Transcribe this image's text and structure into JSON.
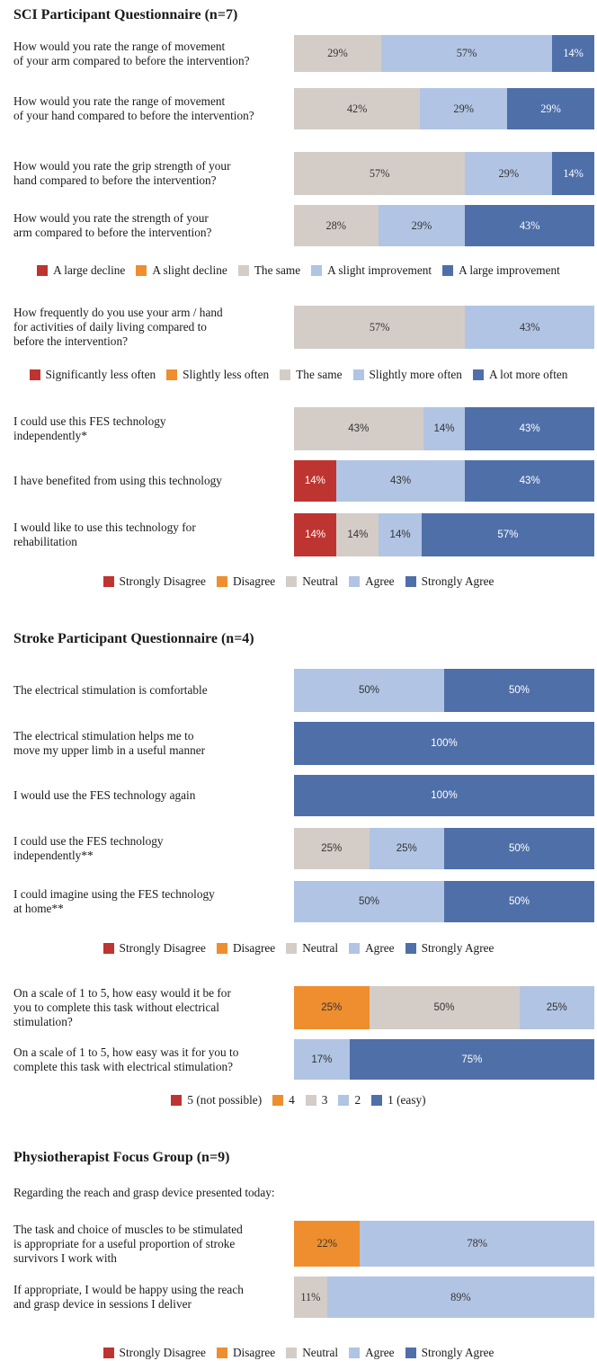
{
  "colors": {
    "strong_neg": "#be3430",
    "neg": "#ee8e2f",
    "neutral": "#d4cdc7",
    "pos": "#b1c4e3",
    "strong_pos": "#4f6fa9"
  },
  "chart_data": [
    {
      "type": "bar",
      "orientation": "horizontal-stacked",
      "title": "SCI Participant Questionnaire (n=7)",
      "series": [
        "A large decline",
        "A slight decline",
        "The same",
        "A slight improvement",
        "A large improvement"
      ],
      "legend": [
        "A large decline",
        "A slight decline",
        "The same",
        "A slight improvement",
        "A large improvement"
      ],
      "questions": [
        {
          "text": "How would you rate the range of movement\nof your arm compared to before the intervention?",
          "values": [
            0,
            0,
            29,
            57,
            14
          ]
        },
        {
          "text": "How would you rate the range of movement\nof your hand compared to before the intervention?",
          "values": [
            0,
            0,
            42,
            29,
            29
          ]
        },
        {
          "text": "How would you rate the grip strength of your\nhand compared to before the intervention?",
          "values": [
            0,
            0,
            57,
            29,
            14
          ]
        },
        {
          "text": "How would you rate the strength of your\narm compared to before the intervention?",
          "values": [
            0,
            0,
            28,
            29,
            43
          ]
        }
      ]
    },
    {
      "type": "bar",
      "orientation": "horizontal-stacked",
      "series": [
        "Significantly less often",
        "Slightly less often",
        "The same",
        "Slightly more often",
        "A lot more often"
      ],
      "legend": [
        "Significantly less often",
        "Slightly less often",
        "The same",
        "Slightly more often",
        "A lot more often"
      ],
      "questions": [
        {
          "text": "How frequently do you use your arm / hand\nfor activities of daily living compared to\nbefore the intervention?",
          "values": [
            0,
            0,
            57,
            43,
            0
          ]
        }
      ]
    },
    {
      "type": "bar",
      "orientation": "horizontal-stacked",
      "series": [
        "Strongly Disagree",
        "Disagree",
        "Neutral",
        "Agree",
        "Strongly Agree"
      ],
      "legend": [
        "Strongly Disagree",
        "Disagree",
        "Neutral",
        "Agree",
        "Strongly Agree"
      ],
      "questions": [
        {
          "text": "I could use this FES technology\nindependently*",
          "values": [
            0,
            0,
            43,
            14,
            43
          ]
        },
        {
          "text": "I have benefited from using this technology",
          "values": [
            14,
            0,
            0,
            43,
            43
          ]
        },
        {
          "text": "I would like to use this technology for\nrehabilitation",
          "values": [
            14,
            0,
            14,
            14,
            57
          ]
        }
      ]
    },
    {
      "type": "bar",
      "orientation": "horizontal-stacked",
      "title": "Stroke Participant Questionnaire (n=4)",
      "series": [
        "Strongly Disagree",
        "Disagree",
        "Neutral",
        "Agree",
        "Strongly Agree"
      ],
      "legend": [
        "Strongly Disagree",
        "Disagree",
        "Neutral",
        "Agree",
        "Strongly Agree"
      ],
      "questions": [
        {
          "text": "The electrical stimulation is comfortable",
          "values": [
            0,
            0,
            0,
            50,
            50
          ]
        },
        {
          "text": "The electrical stimulation helps me to\nmove my upper limb in a useful manner",
          "values": [
            0,
            0,
            0,
            0,
            100
          ]
        },
        {
          "text": "I would use the FES technology again",
          "values": [
            0,
            0,
            0,
            0,
            100
          ]
        },
        {
          "text": "I could use the FES technology\nindependently**",
          "values": [
            0,
            0,
            25,
            25,
            50
          ]
        },
        {
          "text": "I could imagine using the FES technology\nat home**",
          "values": [
            0,
            0,
            0,
            50,
            50
          ]
        }
      ]
    },
    {
      "type": "bar",
      "orientation": "horizontal-stacked",
      "series": [
        "5 (not possible)",
        "4",
        "3",
        "2",
        "1 (easy)"
      ],
      "legend": [
        "5 (not possible)",
        "4",
        "3",
        "2",
        "1 (easy)"
      ],
      "questions": [
        {
          "text": "On a scale of 1 to 5, how easy would it be for\nyou to complete this task without electrical\nstimulation?",
          "values": [
            0,
            25,
            50,
            25,
            0
          ]
        },
        {
          "text": "On a scale of 1 to 5, how easy was it for you to\ncomplete this task with electrical stimulation?",
          "values": [
            0,
            0,
            0,
            17,
            75
          ]
        }
      ]
    },
    {
      "type": "bar",
      "orientation": "horizontal-stacked",
      "title": "Physiotherapist Focus Group (n=9)",
      "subtitle": "Regarding the reach and grasp device presented today:",
      "series": [
        "Strongly Disagree",
        "Disagree",
        "Neutral",
        "Agree",
        "Strongly Agree"
      ],
      "legend": [
        "Strongly Disagree",
        "Disagree",
        "Neutral",
        "Agree",
        "Strongly Agree"
      ],
      "questions": [
        {
          "text": "The task and choice of muscles to be stimulated\nis appropriate for a useful proportion of stroke\nsurvivors I work with",
          "values": [
            0,
            22,
            0,
            78,
            0
          ]
        },
        {
          "text": "If appropriate, I would be happy using the reach\nand grasp device in sessions I deliver",
          "values": [
            0,
            0,
            11,
            89,
            0
          ]
        }
      ]
    }
  ]
}
